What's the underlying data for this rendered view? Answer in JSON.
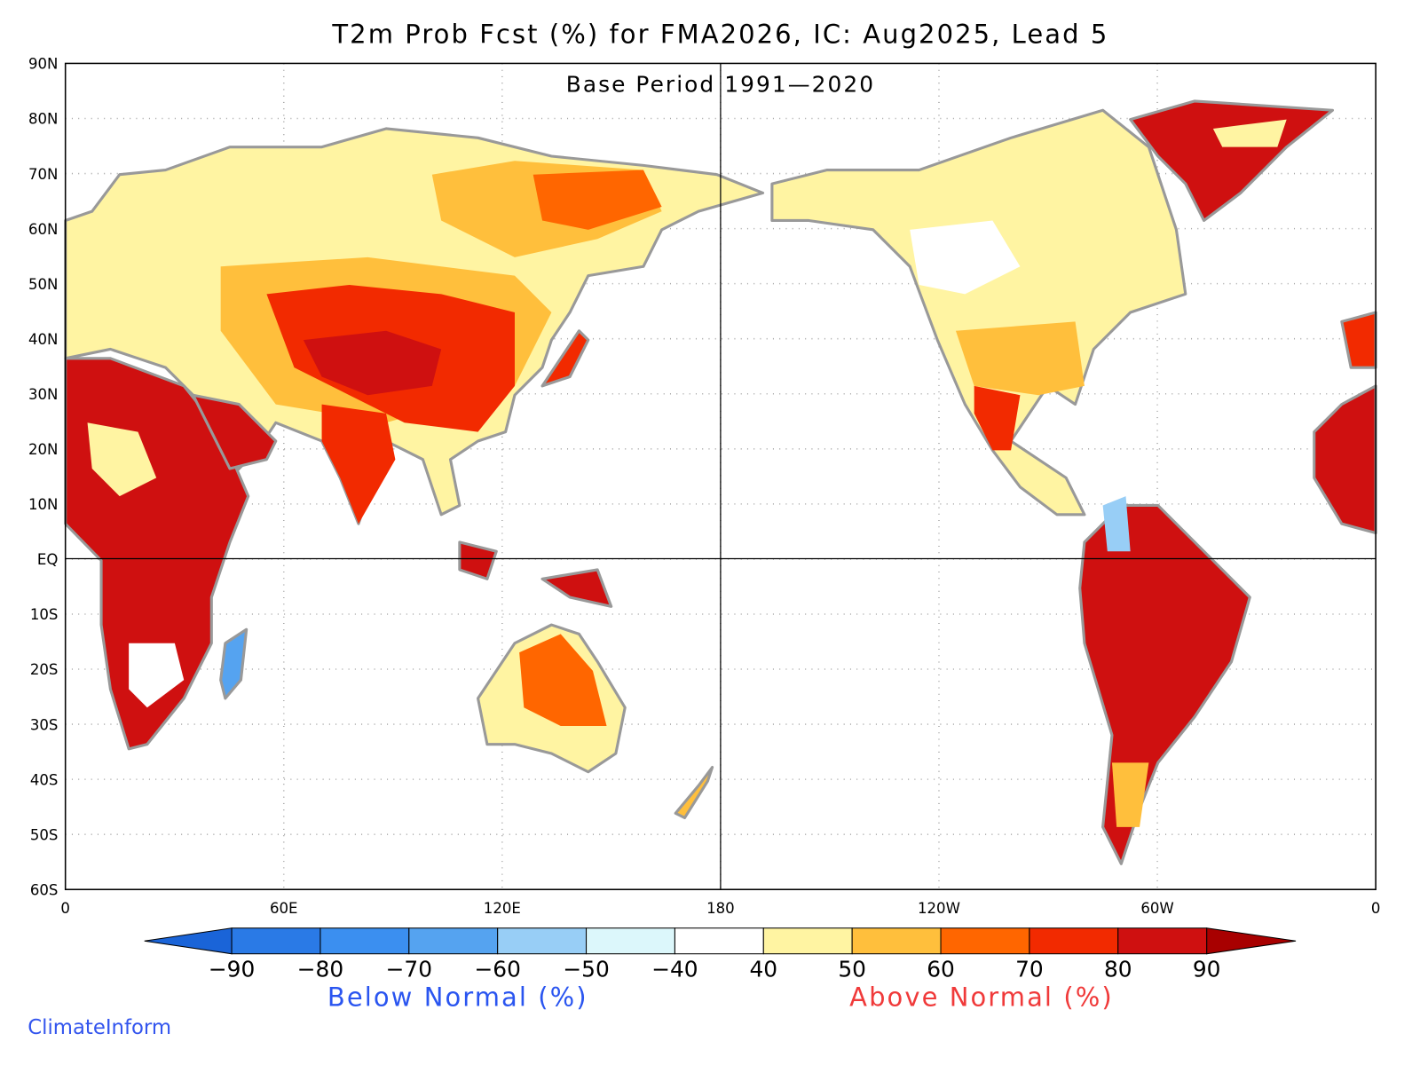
{
  "title": "T2m Prob Fcst (%) for FMA2026, IC: Aug2025, Lead 5",
  "subtitle": "Base Period 1991—2020",
  "lat_labels": [
    "90N",
    "80N",
    "70N",
    "60N",
    "50N",
    "40N",
    "30N",
    "20N",
    "10N",
    "EQ",
    "10S",
    "20S",
    "30S",
    "40S",
    "50S",
    "60S"
  ],
  "lon_labels": [
    "0",
    "60E",
    "120E",
    "180",
    "120W",
    "60W",
    "0"
  ],
  "colorbar": {
    "ticks": [
      {
        "value": -90,
        "label": "−90"
      },
      {
        "value": -80,
        "label": "−80"
      },
      {
        "value": -70,
        "label": "−70"
      },
      {
        "value": -60,
        "label": "−60"
      },
      {
        "value": -50,
        "label": "−50"
      },
      {
        "value": -40,
        "label": "−40"
      },
      40,
      50,
      60,
      70,
      80,
      90
    ],
    "colors": [
      "#2a7ae6",
      "#3b8ff0",
      "#55a3f0",
      "#98cef6",
      "#dcf7fb",
      "#ffffff",
      "#fff4a2",
      "#ffbf3c",
      "#ff6600",
      "#f22a00",
      "#cf1010"
    ],
    "low_color": "#1a64d8",
    "high_color": "#a80000"
  },
  "below_label": "Below Normal (%)",
  "above_label": "Above Normal (%)",
  "credit": "ClimateInform"
}
